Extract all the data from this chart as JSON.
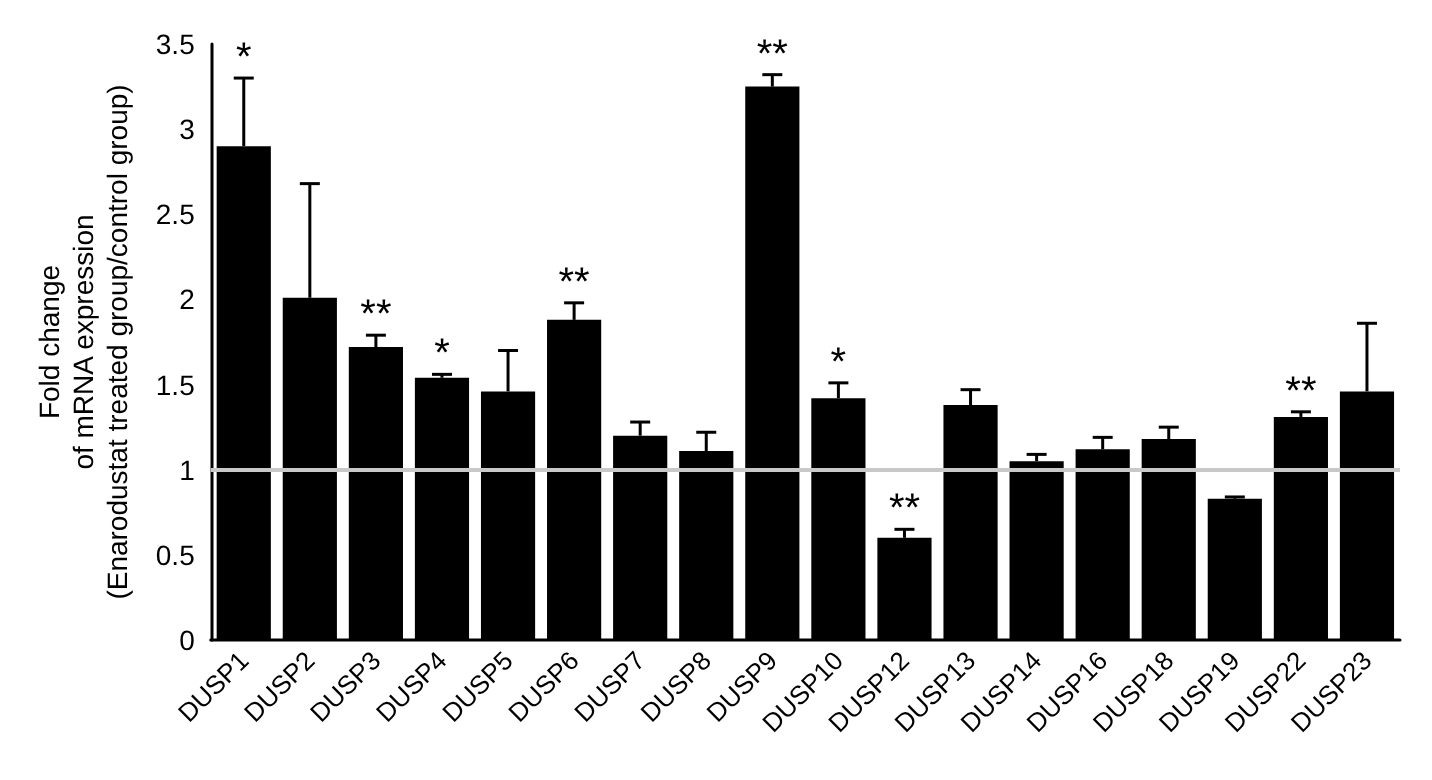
{
  "chart_data": {
    "type": "bar",
    "ylabel": "Fold change\nof mRNA expression\n(Enarodustat treated group/control group)",
    "categories": [
      "DUSP1",
      "DUSP2",
      "DUSP3",
      "DUSP4",
      "DUSP5",
      "DUSP6",
      "DUSP7",
      "DUSP8",
      "DUSP9",
      "DUSP10",
      "DUSP12",
      "DUSP13",
      "DUSP14",
      "DUSP16",
      "DUSP18",
      "DUSP19",
      "DUSP22",
      "DUSP23"
    ],
    "values": [
      2.9,
      2.01,
      1.72,
      1.54,
      1.46,
      1.88,
      1.2,
      1.11,
      3.25,
      1.42,
      0.6,
      1.38,
      1.05,
      1.12,
      1.18,
      0.83,
      1.31,
      1.46
    ],
    "errors": [
      0.4,
      0.67,
      0.07,
      0.02,
      0.24,
      0.1,
      0.08,
      0.11,
      0.07,
      0.09,
      0.05,
      0.09,
      0.04,
      0.07,
      0.07,
      0.01,
      0.03,
      0.4
    ],
    "color": "#000000",
    "ylim": [
      0,
      3.5
    ],
    "yticks": [
      0,
      0.5,
      1,
      1.5,
      2,
      2.5,
      3,
      3.5
    ],
    "grid": false,
    "ref_lines": [
      {
        "axis": "y",
        "value": 1,
        "color": "#c8c8c8"
      }
    ],
    "annotations": [
      {
        "text": "*",
        "x": "DUSP1",
        "y": 3.3
      },
      {
        "text": "**",
        "x": "DUSP3",
        "y": 1.79
      },
      {
        "text": "*",
        "x": "DUSP4",
        "y": 1.56
      },
      {
        "text": "**",
        "x": "DUSP6",
        "y": 1.98
      },
      {
        "text": "**",
        "x": "DUSP9",
        "y": 3.32
      },
      {
        "text": "*",
        "x": "DUSP10",
        "y": 1.51
      },
      {
        "text": "**",
        "x": "DUSP12",
        "y": 0.65
      },
      {
        "text": "**",
        "x": "DUSP22",
        "y": 1.34
      }
    ]
  }
}
